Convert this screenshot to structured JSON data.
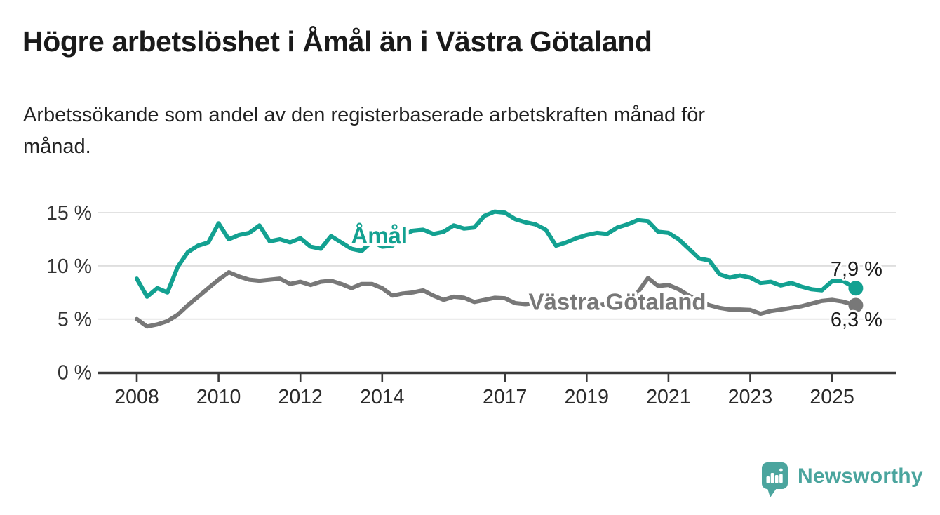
{
  "title": "Högre arbetslöshet i Åmål än i Västra Götaland",
  "subtitle_lines": [
    "Arbetssökande som andel av den registerbaserade arbetskraften månad för",
    "månad."
  ],
  "branding": {
    "logo_text": "Newsworthy",
    "logo_icon": "speech-bubble-bar-chart-icon",
    "logo_color": "#4BA59E"
  },
  "colors": {
    "amal_teal": "#13A191",
    "vastra_gray": "#787878",
    "gridline": "#d9d9d9",
    "axis": "#3a3a3a",
    "tick_label": "#2b2b2b",
    "value_label": "#1d1d1d"
  },
  "chart_data": {
    "type": "line",
    "title": "Högre arbetslöshet i Åmål än i Västra Götaland",
    "subtitle": "Arbetssökande som andel av den registerbaserade arbetskraften månad för månad.",
    "unit": "%",
    "grid": "horizontal-only",
    "legend_position": "inline-labels",
    "xlim": [
      2007.05,
      2026.55
    ],
    "ylim": [
      0,
      16.2
    ],
    "x_ticks": [
      2008,
      2010,
      2012,
      2014,
      2017,
      2019,
      2021,
      2023,
      2025
    ],
    "x_tick_labels": [
      "2008",
      "2010",
      "2012",
      "2014",
      "2017",
      "2019",
      "2021",
      "2023",
      "2025"
    ],
    "y_ticks": [
      0,
      5,
      10,
      15
    ],
    "y_tick_labels": [
      "0 %",
      "5 %",
      "10 %",
      "15 %"
    ],
    "series": [
      {
        "name": "Västra Götaland",
        "color": "#787878",
        "line_label": {
          "text": "Västra Götaland",
          "year": 2019.75,
          "value": 5.88
        },
        "end_label": {
          "text": "6,3 %",
          "position": "below"
        },
        "end_value": 6.3,
        "x": [
          2008,
          2008.25,
          2008.5,
          2008.75,
          2009,
          2009.25,
          2009.5,
          2009.75,
          2010,
          2010.25,
          2010.5,
          2010.75,
          2011,
          2011.25,
          2011.5,
          2011.75,
          2012,
          2012.25,
          2012.5,
          2012.75,
          2013,
          2013.25,
          2013.5,
          2013.75,
          2014,
          2014.25,
          2014.5,
          2014.75,
          2015,
          2015.25,
          2015.5,
          2015.75,
          2016,
          2016.25,
          2016.5,
          2016.75,
          2017,
          2017.25,
          2017.5,
          2017.75,
          2018,
          2018.25,
          2018.5,
          2018.75,
          2019,
          2019.25,
          2019.5,
          2019.75,
          2020,
          2020.25,
          2020.5,
          2020.75,
          2021,
          2021.25,
          2021.5,
          2021.75,
          2022,
          2022.25,
          2022.5,
          2022.75,
          2023,
          2023.25,
          2023.5,
          2023.75,
          2024,
          2024.25,
          2024.5,
          2024.75,
          2025,
          2025.25,
          2025.58
        ],
        "values": [
          5.0,
          4.3,
          4.5,
          4.8,
          5.4,
          6.3,
          7.1,
          7.9,
          8.7,
          9.4,
          9.0,
          8.7,
          8.6,
          8.7,
          8.8,
          8.3,
          8.5,
          8.2,
          8.5,
          8.6,
          8.3,
          7.9,
          8.3,
          8.3,
          7.9,
          7.2,
          7.4,
          7.5,
          7.7,
          7.2,
          6.8,
          7.1,
          7.0,
          6.6,
          6.8,
          7.0,
          6.95,
          6.5,
          6.4,
          6.5,
          6.4,
          6.3,
          6.4,
          6.5,
          6.4,
          6.3,
          6.4,
          6.5,
          6.6,
          7.5,
          8.85,
          8.1,
          8.2,
          7.8,
          7.2,
          6.7,
          6.3,
          6.05,
          5.9,
          5.9,
          5.85,
          5.5,
          5.75,
          5.9,
          6.05,
          6.2,
          6.45,
          6.7,
          6.8,
          6.65,
          6.3
        ]
      },
      {
        "name": "Åmål",
        "color": "#13A191",
        "line_label": {
          "text": "Åmål",
          "year": 2013.93,
          "value": 12.1
        },
        "end_label": {
          "text": "7,9 %",
          "position": "above"
        },
        "end_value": 7.9,
        "x": [
          2008,
          2008.25,
          2008.5,
          2008.75,
          2009,
          2009.25,
          2009.5,
          2009.75,
          2010,
          2010.25,
          2010.5,
          2010.75,
          2011,
          2011.25,
          2011.5,
          2011.75,
          2012,
          2012.25,
          2012.5,
          2012.75,
          2013,
          2013.25,
          2013.5,
          2013.75,
          2014,
          2014.25,
          2014.5,
          2014.75,
          2015,
          2015.25,
          2015.5,
          2015.75,
          2016,
          2016.25,
          2016.5,
          2016.75,
          2017,
          2017.25,
          2017.5,
          2017.75,
          2018,
          2018.25,
          2018.5,
          2018.75,
          2019,
          2019.25,
          2019.5,
          2019.75,
          2020,
          2020.25,
          2020.5,
          2020.75,
          2021,
          2021.25,
          2021.5,
          2021.75,
          2022,
          2022.25,
          2022.5,
          2022.75,
          2023,
          2023.25,
          2023.5,
          2023.75,
          2024,
          2024.25,
          2024.5,
          2024.75,
          2025,
          2025.25,
          2025.58
        ],
        "values": [
          8.8,
          7.1,
          7.9,
          7.5,
          9.9,
          11.3,
          11.9,
          12.2,
          14.0,
          12.5,
          12.9,
          13.1,
          13.8,
          12.3,
          12.5,
          12.2,
          12.6,
          11.8,
          11.6,
          12.8,
          12.2,
          11.6,
          11.4,
          12.3,
          11.8,
          11.9,
          12.9,
          13.3,
          13.4,
          13.0,
          13.2,
          13.8,
          13.5,
          13.6,
          14.7,
          15.1,
          15.0,
          14.4,
          14.1,
          13.9,
          13.4,
          11.9,
          12.2,
          12.6,
          12.9,
          13.1,
          13.0,
          13.6,
          13.9,
          14.3,
          14.2,
          13.2,
          13.1,
          12.5,
          11.6,
          10.7,
          10.5,
          9.2,
          8.9,
          9.1,
          8.9,
          8.4,
          8.5,
          8.15,
          8.4,
          8.05,
          7.8,
          7.7,
          8.55,
          8.6,
          7.9
        ]
      }
    ]
  }
}
